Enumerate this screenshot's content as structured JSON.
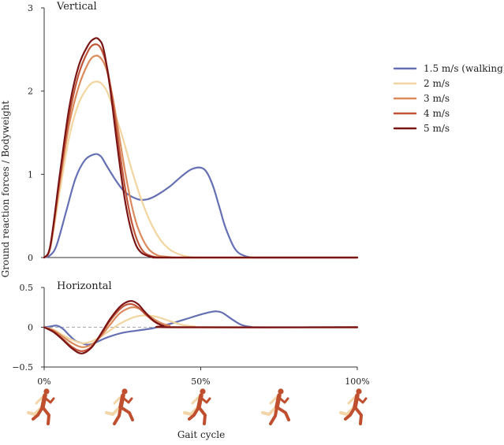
{
  "chart_data": {
    "type": "line",
    "xlabel": "Gait cycle",
    "ylabel": "Ground reaction forces / Bodyweight",
    "x_ticks": [
      {
        "value": 0,
        "label": "0%"
      },
      {
        "value": 50,
        "label": "50%"
      },
      {
        "value": 100,
        "label": "100%"
      }
    ],
    "legend_position": "right",
    "legend": [
      {
        "name": "1.5 m/s (walking)",
        "color": "#6570b4"
      },
      {
        "name": "2 m/s",
        "color": "#f2d5a0"
      },
      {
        "name": "3 m/s",
        "color": "#db8a5c"
      },
      {
        "name": "4 m/s",
        "color": "#c05438"
      },
      {
        "name": "5 m/s",
        "color": "#7a1414"
      }
    ],
    "panels": [
      {
        "title": "Vertical",
        "xlim": [
          0,
          100
        ],
        "ylim": [
          0,
          3
        ],
        "y_ticks": [
          {
            "value": 0,
            "label": "0"
          },
          {
            "value": 1,
            "label": "1"
          },
          {
            "value": 2,
            "label": "2"
          },
          {
            "value": 3,
            "label": "3"
          }
        ],
        "zero_line": false,
        "series": [
          {
            "name": "1.5 m/s (walking)",
            "color": "#6570b4",
            "x": [
              0,
              2,
              4,
              7,
              10,
              13,
              16,
              18,
              20,
              23,
              26,
              30,
              33,
              36,
              40,
              44,
              47,
              50,
              52,
              54,
              56,
              58,
              61,
              64,
              67,
              70,
              100
            ],
            "y": [
              0,
              0.03,
              0.15,
              0.55,
              0.95,
              1.17,
              1.24,
              1.22,
              1.1,
              0.92,
              0.78,
              0.7,
              0.7,
              0.75,
              0.85,
              0.98,
              1.06,
              1.08,
              1.02,
              0.85,
              0.6,
              0.35,
              0.1,
              0.02,
              0,
              0,
              0
            ]
          },
          {
            "name": "2 m/s",
            "color": "#f2d5a0",
            "x": [
              0,
              2,
              5,
              8,
              11,
              14,
              16,
              18,
              20,
              22,
              25,
              28,
              31,
              34,
              37,
              40,
              43,
              46,
              49,
              52,
              100
            ],
            "y": [
              0,
              0.12,
              0.8,
              1.45,
              1.85,
              2.05,
              2.11,
              2.1,
              2.0,
              1.8,
              1.45,
              1.05,
              0.7,
              0.42,
              0.22,
              0.1,
              0.04,
              0.01,
              0,
              0,
              0
            ]
          },
          {
            "name": "3 m/s",
            "color": "#db8a5c",
            "x": [
              0,
              2,
              5,
              8,
              11,
              14,
              16,
              18,
              20,
              22,
              24,
              26,
              28,
              30,
              33,
              36,
              39,
              42,
              45,
              100
            ],
            "y": [
              0,
              0.13,
              0.9,
              1.6,
              2.05,
              2.33,
              2.42,
              2.4,
              2.25,
              1.9,
              1.45,
              1.0,
              0.62,
              0.35,
              0.12,
              0.03,
              0.01,
              0,
              0,
              0
            ]
          },
          {
            "name": "4 m/s",
            "color": "#c05438",
            "x": [
              0,
              2,
              5,
              8,
              11,
              14,
              16,
              18,
              20,
              22,
              24,
              26,
              28,
              30,
              32,
              35,
              38,
              41,
              100
            ],
            "y": [
              0,
              0.14,
              0.95,
              1.7,
              2.2,
              2.48,
              2.56,
              2.52,
              2.3,
              1.85,
              1.3,
              0.8,
              0.42,
              0.18,
              0.06,
              0.01,
              0,
              0,
              0
            ]
          },
          {
            "name": "5 m/s",
            "color": "#7a1414",
            "x": [
              0,
              2,
              5,
              8,
              11,
              14,
              16,
              17.5,
              19,
              21,
              23,
              25,
              27,
              29,
              31,
              34,
              37,
              40,
              100
            ],
            "y": [
              0,
              0.15,
              1.0,
              1.8,
              2.3,
              2.55,
              2.63,
              2.62,
              2.5,
              2.05,
              1.45,
              0.88,
              0.45,
              0.18,
              0.06,
              0.01,
              0,
              0,
              0
            ]
          }
        ]
      },
      {
        "title": "Horizontal",
        "xlim": [
          0,
          100
        ],
        "ylim": [
          -0.5,
          0.5
        ],
        "y_ticks": [
          {
            "value": -0.5,
            "label": "−0.5"
          },
          {
            "value": 0,
            "label": "0"
          },
          {
            "value": 0.5,
            "label": "0.5"
          }
        ],
        "zero_line": true,
        "series": [
          {
            "name": "1.5 m/s (walking)",
            "color": "#6570b4",
            "x": [
              0,
              2,
              4,
              6,
              8,
              10,
              12,
              14,
              16,
              20,
              25,
              30,
              35,
              40,
              45,
              50,
              53,
              55,
              57,
              60,
              63,
              66,
              70,
              100
            ],
            "y": [
              0,
              0.01,
              0.02,
              -0.02,
              -0.1,
              -0.17,
              -0.2,
              -0.22,
              -0.2,
              -0.13,
              -0.07,
              -0.04,
              -0.01,
              0.04,
              0.1,
              0.16,
              0.19,
              0.2,
              0.18,
              0.1,
              0.03,
              0.005,
              0,
              0
            ]
          },
          {
            "name": "2 m/s",
            "color": "#f2d5a0",
            "x": [
              0,
              3,
              6,
              9,
              12,
              15,
              18,
              21,
              24,
              27,
              30,
              33,
              36,
              40,
              44,
              48,
              52,
              100
            ],
            "y": [
              0,
              -0.03,
              -0.1,
              -0.16,
              -0.2,
              -0.18,
              -0.12,
              -0.04,
              0.04,
              0.1,
              0.14,
              0.15,
              0.13,
              0.08,
              0.03,
              0.01,
              0,
              0
            ]
          },
          {
            "name": "3 m/s",
            "color": "#db8a5c",
            "x": [
              0,
              3,
              6,
              9,
              12,
              15,
              18,
              21,
              24,
              27,
              29,
              31,
              34,
              37,
              40,
              44,
              100
            ],
            "y": [
              0,
              -0.04,
              -0.12,
              -0.2,
              -0.25,
              -0.22,
              -0.12,
              0.03,
              0.17,
              0.24,
              0.25,
              0.22,
              0.13,
              0.06,
              0.02,
              0,
              0
            ]
          },
          {
            "name": "4 m/s",
            "color": "#c05438",
            "x": [
              0,
              3,
              6,
              9,
              12,
              15,
              18,
              21,
              24,
              26,
              28,
              30,
              33,
              36,
              39,
              42,
              100
            ],
            "y": [
              0,
              -0.05,
              -0.15,
              -0.25,
              -0.3,
              -0.25,
              -0.1,
              0.08,
              0.22,
              0.28,
              0.29,
              0.25,
              0.14,
              0.05,
              0.01,
              0,
              0
            ]
          },
          {
            "name": "5 m/s",
            "color": "#7a1414",
            "x": [
              0,
              3,
              6,
              9,
              12,
              15,
              18,
              21,
              24,
              26,
              28,
              30,
              32,
              35,
              38,
              41,
              100
            ],
            "y": [
              0,
              -0.06,
              -0.16,
              -0.27,
              -0.33,
              -0.26,
              -0.09,
              0.1,
              0.25,
              0.31,
              0.33,
              0.29,
              0.2,
              0.08,
              0.02,
              0,
              0
            ]
          }
        ]
      }
    ]
  }
}
